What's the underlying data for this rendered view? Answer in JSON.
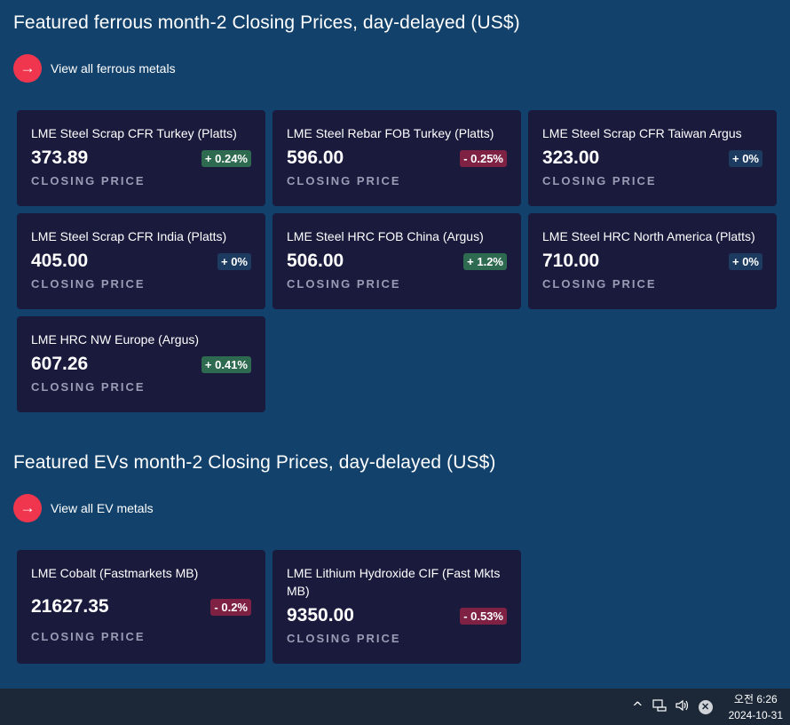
{
  "ferrous": {
    "title": "Featured ferrous month-2 Closing Prices, day-delayed (US$)",
    "view_all": "View all ferrous metals",
    "cards": [
      {
        "name": "LME Steel Scrap CFR Turkey (Platts)",
        "price": "373.89",
        "change": "+ 0.24%",
        "direction": "up",
        "label": "CLOSING PRICE"
      },
      {
        "name": "LME Steel Rebar FOB Turkey (Platts)",
        "price": "596.00",
        "change": "- 0.25%",
        "direction": "down",
        "label": "CLOSING PRICE"
      },
      {
        "name": "LME Steel Scrap CFR Taiwan Argus",
        "price": "323.00",
        "change": "+ 0%",
        "direction": "flat",
        "label": "CLOSING PRICE"
      },
      {
        "name": "LME Steel Scrap CFR India (Platts)",
        "price": "405.00",
        "change": "+ 0%",
        "direction": "flat",
        "label": "CLOSING PRICE"
      },
      {
        "name": "LME Steel HRC FOB China (Argus)",
        "price": "506.00",
        "change": "+ 1.2%",
        "direction": "up",
        "label": "CLOSING PRICE"
      },
      {
        "name": "LME Steel HRC North America (Platts)",
        "price": "710.00",
        "change": "+ 0%",
        "direction": "flat",
        "label": "CLOSING PRICE"
      },
      {
        "name": "LME HRC NW Europe (Argus)",
        "price": "607.26",
        "change": "+ 0.41%",
        "direction": "up",
        "label": "CLOSING PRICE"
      }
    ]
  },
  "evs": {
    "title": "Featured EVs month-2 Closing Prices, day-delayed (US$)",
    "view_all": "View all EV metals",
    "cards": [
      {
        "name": "LME Cobalt (Fastmarkets MB)",
        "price": "21627.35",
        "change": "- 0.2%",
        "direction": "down",
        "label": "CLOSING PRICE"
      },
      {
        "name": "LME Lithium Hydroxide CIF (Fast Mkts MB)",
        "price": "9350.00",
        "change": "- 0.53%",
        "direction": "down",
        "label": "CLOSING PRICE"
      }
    ]
  },
  "taskbar": {
    "chevron_icon": "chevron-up-icon",
    "network_icon": "network-icon",
    "volume_icon": "volume-icon",
    "close_icon": "close-circle-icon",
    "time": "오전 6:26",
    "date": "2024-10-31"
  },
  "colors": {
    "background": "#12416b",
    "card": "#191a3c",
    "accent": "#f0364e",
    "up": "#2d6a4f",
    "down": "#7e2143",
    "flat": "#1d3a60"
  }
}
